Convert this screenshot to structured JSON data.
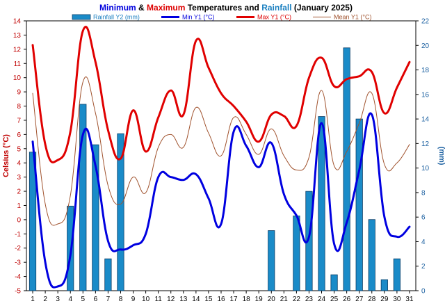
{
  "chart_data": {
    "type": "bar+line",
    "title_parts": [
      {
        "text": "Minimum",
        "color": "#0000dd"
      },
      {
        "text": " & ",
        "color": "#000000"
      },
      {
        "text": "Maximum",
        "color": "#dd0000"
      },
      {
        "text": " Temperatures and ",
        "color": "#000000"
      },
      {
        "text": "Rainfall",
        "color": "#1a7fc0"
      },
      {
        "text": " (January 2025)",
        "color": "#000000"
      }
    ],
    "ylabel_left": "Celsius (°C)",
    "ylabel_right": "(mm)",
    "ylim_left": [
      -5,
      14
    ],
    "ylim_right": [
      0,
      22
    ],
    "yticks_left": [
      -5,
      -4,
      -3,
      -2,
      -1,
      0,
      1,
      2,
      3,
      4,
      5,
      6,
      7,
      8,
      9,
      10,
      11,
      12,
      13,
      14
    ],
    "yticks_right": [
      0,
      2,
      4,
      6,
      8,
      10,
      12,
      14,
      16,
      18,
      20,
      22
    ],
    "categories": [
      "1",
      "2",
      "3",
      "4",
      "5",
      "6",
      "7",
      "8",
      "9",
      "10",
      "11",
      "12",
      "13",
      "14",
      "15",
      "16",
      "17",
      "18",
      "19",
      "20",
      "21",
      "22",
      "23",
      "24",
      "25",
      "26",
      "27",
      "28",
      "29",
      "30",
      "31"
    ],
    "series": [
      {
        "name": "Rainfall Y2 (mm)",
        "kind": "bar",
        "axis": "right",
        "color": "#1a8bc8",
        "values": [
          11.3,
          0,
          0,
          6.9,
          15.2,
          11.9,
          2.6,
          12.8,
          0,
          0,
          0,
          0,
          0,
          0,
          0,
          0,
          0,
          0,
          0,
          4.9,
          0,
          6.1,
          8.1,
          14.2,
          1.3,
          19.8,
          14.0,
          5.8,
          0.9,
          2.6,
          0
        ]
      },
      {
        "name": "Min Y1 (°C)",
        "kind": "line",
        "axis": "left",
        "color": "#0000e0",
        "values": [
          5.5,
          -3.0,
          -4.7,
          -2.5,
          6.0,
          3.8,
          -1.5,
          -2.1,
          -1.8,
          -1.0,
          3.0,
          3.0,
          2.8,
          3.2,
          1.5,
          -0.3,
          6.2,
          5.2,
          3.7,
          5.4,
          1.8,
          0.3,
          -1.2,
          6.8,
          -1.7,
          -0.2,
          3.5,
          7.4,
          0.2,
          -1.2,
          -0.5
        ]
      },
      {
        "name": "Max Y1 (°C)",
        "kind": "line",
        "axis": "left",
        "color": "#e00000",
        "values": [
          12.3,
          5.3,
          4.2,
          6.2,
          13.3,
          11.1,
          6.3,
          4.3,
          7.7,
          4.8,
          7.2,
          9.1,
          7.4,
          12.6,
          10.7,
          8.9,
          8.0,
          6.9,
          5.5,
          7.4,
          7.3,
          6.6,
          10.0,
          11.4,
          9.4,
          9.9,
          10.1,
          10.4,
          7.5,
          9.3,
          11.1
        ]
      },
      {
        "name": "Mean Y1 (°C)",
        "kind": "line",
        "axis": "left",
        "color": "#a0522d",
        "values": [
          8.9,
          1.1,
          -0.3,
          1.7,
          9.7,
          7.5,
          2.4,
          1.1,
          3.0,
          1.9,
          5.1,
          6.0,
          5.1,
          7.9,
          6.1,
          4.5,
          7.2,
          6.0,
          4.6,
          6.4,
          4.5,
          3.5,
          4.4,
          9.1,
          3.8,
          4.8,
          6.8,
          8.9,
          3.9,
          4.0,
          5.3
        ]
      }
    ]
  }
}
